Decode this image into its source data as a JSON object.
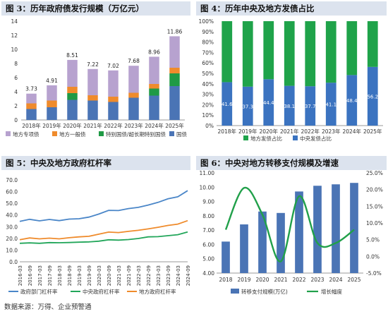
{
  "colors": {
    "title_bg": "#dce3ee",
    "guozhai": "#4a74b5",
    "tebie": "#1f9a45",
    "yiban": "#ef8b2c",
    "zhuanxiang": "#b7a2cf",
    "central_share": "#3b73c0",
    "local_share": "#1fa34a",
    "gov_lev": "#4a86c8",
    "central_lev": "#22a65a",
    "local_lev": "#ef8b2c",
    "transfer_bar": "#4a74b5",
    "growth_line": "#21a04a"
  },
  "panel1": {
    "title": "图 3：历年政府债发行规模（万亿元）",
    "chart_data": {
      "type": "bar",
      "stacked": true,
      "categories": [
        "2018年",
        "2019年",
        "2020年",
        "2021年",
        "2022年",
        "2023年",
        "2024年",
        "2025年"
      ],
      "series": [
        {
          "name": "国债",
          "values": [
            1.55,
            1.8,
            2.85,
            2.75,
            2.55,
            3.15,
            3.45,
            4.8
          ]
        },
        {
          "name": "特别国债/超长期特别国债",
          "values": [
            0,
            0,
            0.95,
            0,
            0,
            0,
            1.0,
            1.8
          ]
        },
        {
          "name": "地方一般债",
          "values": [
            0.8,
            0.95,
            0.9,
            0.75,
            0.75,
            0.7,
            0.65,
            0.8
          ]
        },
        {
          "name": "地方专项债",
          "values": [
            1.38,
            2.16,
            3.81,
            3.72,
            3.72,
            3.83,
            3.86,
            4.46
          ]
        }
      ],
      "totals": [
        "3.73",
        "4.91",
        "8.51",
        "7.22",
        "7.02",
        "7.68",
        "8.96",
        "11.86"
      ],
      "ylim": [
        0,
        14
      ],
      "yticks": [
        "0",
        "2",
        "4",
        "6",
        "8",
        "10",
        "12",
        "14"
      ],
      "legend": [
        "地方专项债",
        "地方一般债",
        "特别国债/超长期特别国债",
        "国债"
      ],
      "legend_position": "bottom"
    }
  },
  "panel2": {
    "title": "图 4：历年中央及地方发债占比",
    "chart_data": {
      "type": "bar",
      "stacked": true,
      "percent": true,
      "categories": [
        "2018年",
        "2019年",
        "2020年",
        "2021年",
        "2022年",
        "2023年",
        "2024年",
        "2025年"
      ],
      "series": [
        {
          "name": "中央发债占比",
          "values": [
            41.6,
            37.3,
            44.4,
            38.1,
            37.7,
            41.1,
            48.4,
            56.2
          ]
        },
        {
          "name": "地方发债占比",
          "values": [
            58.4,
            62.7,
            55.6,
            61.9,
            62.3,
            58.9,
            51.6,
            43.8
          ]
        }
      ],
      "labels": [
        "41.6",
        "37.3",
        "44.4",
        "38.1",
        "37.7",
        "41.1",
        "48.4",
        "56.2"
      ],
      "ylim": [
        0,
        100
      ],
      "yticks": [
        "0%",
        "10%",
        "20%",
        "30%",
        "40%",
        "50%",
        "60%",
        "70%",
        "80%",
        "90%",
        "100%"
      ],
      "legend": [
        "地方发债占比",
        "中央发债占比"
      ],
      "legend_position": "bottom"
    }
  },
  "panel3": {
    "title": "图 5：中央及地方政府杠杆率",
    "chart_data": {
      "type": "line",
      "x": [
        "2016-03",
        "2016-09",
        "2017-03",
        "2017-09",
        "2018-03",
        "2018-09",
        "2019-03",
        "2019-09",
        "2020-03",
        "2020-09",
        "2021-03",
        "2021-09",
        "2022-03",
        "2022-09",
        "2023-03",
        "2023-09",
        "2024-03",
        "2024-09"
      ],
      "series": [
        {
          "name": "政府部门杠杆率",
          "values": [
            34.5,
            36.3,
            35.0,
            36.2,
            35.2,
            36.5,
            36.8,
            38.2,
            40.8,
            44.0,
            43.8,
            45.5,
            46.5,
            48.5,
            50.8,
            53.8,
            55.6,
            60.8
          ]
        },
        {
          "name": "中央政府杠杆率",
          "values": [
            15.8,
            16.2,
            15.8,
            16.4,
            16.3,
            16.5,
            16.8,
            17.0,
            17.6,
            18.8,
            18.5,
            19.0,
            19.9,
            21.3,
            21.5,
            22.3,
            23.2,
            25.5
          ]
        },
        {
          "name": "地方政府杠杆率",
          "values": [
            18.8,
            20.4,
            19.6,
            20.2,
            19.6,
            20.6,
            21.3,
            21.8,
            23.6,
            25.4,
            25.0,
            26.0,
            26.9,
            28.1,
            29.5,
            31.1,
            32.2,
            35.2
          ]
        }
      ],
      "ylim": [
        0,
        70
      ],
      "yticks": [
        "0.0",
        "10.0",
        "20.0",
        "30.0",
        "40.0",
        "50.0",
        "60.0",
        "70.0"
      ],
      "legend": [
        "政府部门杠杆率",
        "中央政府杠杆率",
        "地方政府杠杆率"
      ],
      "legend_position": "bottom"
    }
  },
  "panel4": {
    "title": "图 6：中央对地方转移支付规模及增速",
    "chart_data": {
      "type": "bar",
      "categories": [
        "2018",
        "2019",
        "2020",
        "2021",
        "2022",
        "2023",
        "2024",
        "2025"
      ],
      "series": [
        {
          "name": "转移支付规模(万亿)",
          "axis": "left",
          "values": [
            6.2,
            7.4,
            8.3,
            8.2,
            9.7,
            10.1,
            10.2,
            10.3
          ]
        },
        {
          "name": "增长幅度",
          "axis": "right",
          "type": "line",
          "values": [
            8.0,
            20.5,
            12.5,
            -1.5,
            18.0,
            4.0,
            4.0,
            8.0
          ]
        }
      ],
      "ylim_left": [
        4.0,
        11.0
      ],
      "ylim_right": [
        -5,
        25
      ],
      "yticks_left": [
        "4.00",
        "5.00",
        "6.00",
        "7.00",
        "8.00",
        "9.00",
        "10.00",
        "11.00"
      ],
      "yticks_right": [
        "-5.0%",
        "0.0%",
        "5.0%",
        "10.0%",
        "15.0%",
        "20.0%",
        "25.0%"
      ],
      "legend": [
        "转移支付规模(万亿)",
        "增长幅度"
      ],
      "legend_position": "bottom"
    }
  },
  "source": "数据来源：万得、企业预警通"
}
